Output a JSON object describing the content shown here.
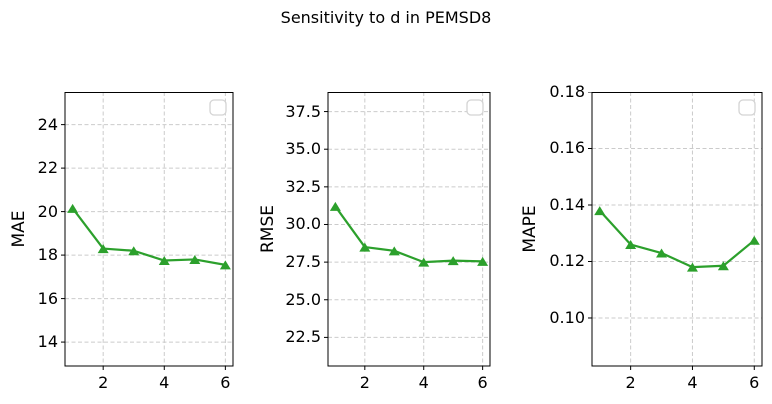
{
  "figure": {
    "title": "Sensitivity to d in PEMSD8"
  },
  "colors": {
    "line": "#2ca02c",
    "marker": "#2ca02c",
    "grid": "#cbcbcb",
    "spine": "#000000",
    "text": "#000000",
    "legend_border": "#d4d4d4",
    "background": "#ffffff"
  },
  "chart_data": [
    {
      "type": "line",
      "ylabel": "MAE",
      "x": [
        1,
        2,
        3,
        4,
        5,
        6
      ],
      "values": [
        20.15,
        18.3,
        18.2,
        17.75,
        17.8,
        17.55
      ],
      "xlim": [
        0.75,
        6.25
      ],
      "ylim": [
        12.9,
        25.5
      ],
      "xticks": [
        2,
        4,
        6
      ],
      "xtick_labels": [
        "2",
        "4",
        "6"
      ],
      "yticks": [
        14,
        16,
        18,
        20,
        22,
        24
      ],
      "ytick_labels": [
        "14",
        "16",
        "18",
        "20",
        "22",
        "24"
      ],
      "line_color": "#2ca02c",
      "marker": "triangle-up",
      "grid": "dashed",
      "legend": "empty-box"
    },
    {
      "type": "line",
      "ylabel": "RMSE",
      "x": [
        1,
        2,
        3,
        4,
        5,
        6
      ],
      "values": [
        31.2,
        28.5,
        28.25,
        27.5,
        27.6,
        27.55
      ],
      "xlim": [
        0.75,
        6.25
      ],
      "ylim": [
        20.6,
        38.8
      ],
      "xticks": [
        2,
        4,
        6
      ],
      "xtick_labels": [
        "2",
        "4",
        "6"
      ],
      "yticks": [
        22.5,
        25.0,
        27.5,
        30.0,
        32.5,
        35.0,
        37.5
      ],
      "ytick_labels": [
        "22.5",
        "25.0",
        "27.5",
        "30.0",
        "32.5",
        "35.0",
        "37.5"
      ],
      "line_color": "#2ca02c",
      "marker": "triangle-up",
      "grid": "dashed",
      "legend": "empty-box"
    },
    {
      "type": "line",
      "ylabel": "MAPE",
      "x": [
        1,
        2,
        3,
        4,
        5,
        6
      ],
      "values": [
        0.138,
        0.126,
        0.123,
        0.118,
        0.1185,
        0.1275
      ],
      "xlim": [
        0.75,
        6.25
      ],
      "ylim": [
        0.083,
        0.18
      ],
      "xticks": [
        2,
        4,
        6
      ],
      "xtick_labels": [
        "2",
        "4",
        "6"
      ],
      "yticks": [
        0.1,
        0.12,
        0.14,
        0.16,
        0.18
      ],
      "ytick_labels": [
        "0.10",
        "0.12",
        "0.14",
        "0.16",
        "0.18"
      ],
      "line_color": "#2ca02c",
      "marker": "triangle-up",
      "grid": "dashed",
      "legend": "empty-box"
    }
  ]
}
